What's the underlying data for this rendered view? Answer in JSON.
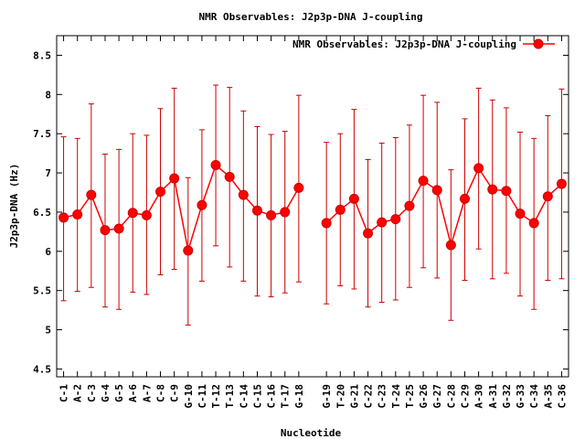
{
  "chart_data": {
    "type": "line",
    "title": "NMR Observables: J2p3p-DNA J-coupling",
    "xlabel": "Nucleotide",
    "ylabel": "J2p3p-DNA (Hz)",
    "ylim": [
      4.4,
      8.75
    ],
    "yticks": [
      "4.5",
      "5",
      "5.5",
      "6",
      "6.5",
      "7",
      "7.5",
      "8",
      "8.5"
    ],
    "grid": false,
    "legend": {
      "label": "NMR Observables: J2p3p-DNA J-coupling",
      "placement": "top-right"
    },
    "color": "#ff0000",
    "error_color": "#cc0000",
    "categories": [
      "C-1",
      "A-2",
      "C-3",
      "G-4",
      "G-5",
      "A-6",
      "A-7",
      "C-8",
      "C-9",
      "G-10",
      "C-11",
      "T-12",
      "T-13",
      "C-14",
      "C-15",
      "C-16",
      "T-17",
      "G-18",
      "",
      "G-19",
      "T-20",
      "G-21",
      "C-22",
      "C-23",
      "T-24",
      "T-25",
      "G-26",
      "G-27",
      "C-28",
      "C-29",
      "A-30",
      "A-31",
      "G-32",
      "G-33",
      "C-34",
      "A-35",
      "C-36"
    ],
    "series": [
      {
        "name": "NMR Observables: J2p3p-DNA J-coupling",
        "values": [
          6.43,
          6.47,
          6.72,
          6.27,
          6.29,
          6.49,
          6.46,
          6.76,
          6.93,
          6.01,
          6.59,
          7.1,
          6.95,
          6.72,
          6.52,
          6.46,
          6.5,
          6.81,
          null,
          6.36,
          6.53,
          6.67,
          6.23,
          6.37,
          6.41,
          6.58,
          6.9,
          6.78,
          6.08,
          6.67,
          7.06,
          6.79,
          6.77,
          6.48,
          6.36,
          6.7,
          6.86
        ],
        "err_low": [
          5.37,
          5.49,
          5.54,
          5.29,
          5.26,
          5.48,
          5.45,
          5.7,
          5.77,
          5.06,
          5.62,
          6.07,
          5.8,
          5.62,
          5.43,
          5.42,
          5.47,
          5.61,
          null,
          5.33,
          5.56,
          5.52,
          5.29,
          5.35,
          5.38,
          5.54,
          5.79,
          5.66,
          5.12,
          5.63,
          6.03,
          5.65,
          5.72,
          5.43,
          5.26,
          5.63,
          5.65
        ],
        "err_high": [
          7.46,
          7.44,
          7.88,
          7.24,
          7.3,
          7.5,
          7.48,
          7.82,
          8.08,
          6.94,
          7.55,
          8.12,
          8.09,
          7.79,
          7.59,
          7.49,
          7.53,
          7.99,
          null,
          7.39,
          7.5,
          7.81,
          7.17,
          7.38,
          7.45,
          7.61,
          7.99,
          7.9,
          7.04,
          7.69,
          8.08,
          7.93,
          7.83,
          7.52,
          7.44,
          7.73,
          8.07
        ]
      }
    ]
  }
}
